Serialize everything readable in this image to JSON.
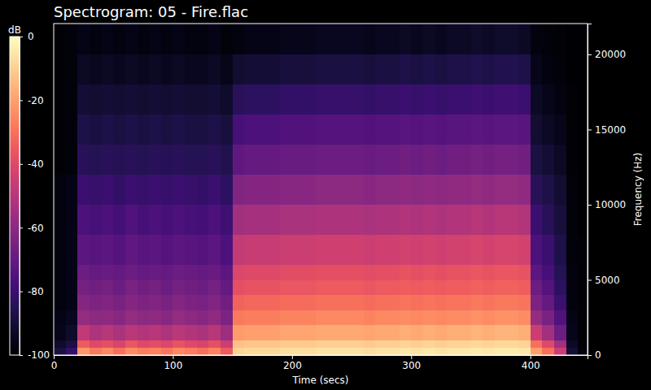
{
  "chart_data": {
    "type": "heatmap",
    "title": "Spectrogram: 05 - Fire.flac",
    "x_label": "Time (secs)",
    "y_label": "Frequency (Hz)",
    "xlim": [
      0,
      448
    ],
    "xticks": [
      0,
      100,
      200,
      300,
      400
    ],
    "ylim": [
      0,
      22050
    ],
    "yticks": [
      0,
      5000,
      10000,
      15000,
      20000
    ],
    "x_edges": [
      0,
      10,
      20,
      30,
      40,
      50,
      60,
      70,
      80,
      90,
      100,
      110,
      120,
      130,
      140,
      150,
      160,
      170,
      180,
      190,
      200,
      210,
      220,
      230,
      240,
      250,
      260,
      270,
      280,
      290,
      300,
      310,
      320,
      330,
      340,
      350,
      360,
      370,
      380,
      390,
      400,
      410,
      420,
      430,
      440,
      448
    ],
    "y_edges": [
      0,
      500,
      1000,
      2000,
      3000,
      4000,
      5000,
      6000,
      8000,
      10000,
      12000,
      14000,
      16000,
      18000,
      20000,
      22050
    ],
    "cells": [
      [
        -88,
        -82,
        -22,
        -28,
        -25,
        -30,
        -24,
        -27,
        -26,
        -29,
        -25,
        -27,
        -30,
        -26,
        -35,
        -9,
        -8,
        -8,
        -8,
        -7,
        -7,
        -7,
        -6,
        -6,
        -6,
        -6,
        -7,
        -6,
        -6,
        -5,
        -6,
        -5,
        -6,
        -5,
        -5,
        -4,
        -5,
        -4,
        -4,
        -5,
        -20,
        -30,
        -45,
        -90,
        -98
      ],
      [
        -92,
        -88,
        -35,
        -40,
        -38,
        -42,
        -36,
        -40,
        -39,
        -41,
        -37,
        -40,
        -42,
        -38,
        -45,
        -13,
        -12,
        -12,
        -12,
        -11,
        -11,
        -11,
        -10,
        -10,
        -10,
        -10,
        -11,
        -10,
        -10,
        -9,
        -10,
        -9,
        -10,
        -9,
        -9,
        -8,
        -9,
        -8,
        -8,
        -9,
        -30,
        -40,
        -55,
        -93,
        -99
      ],
      [
        -95,
        -92,
        -48,
        -52,
        -50,
        -53,
        -49,
        -51,
        -50,
        -52,
        -49,
        -51,
        -53,
        -50,
        -56,
        -21,
        -20,
        -20,
        -20,
        -19,
        -19,
        -19,
        -18,
        -18,
        -18,
        -18,
        -19,
        -18,
        -18,
        -17,
        -18,
        -17,
        -18,
        -17,
        -17,
        -16,
        -17,
        -16,
        -16,
        -17,
        -45,
        -55,
        -68,
        -95,
        -99
      ],
      [
        -96,
        -94,
        -58,
        -60,
        -59,
        -61,
        -58,
        -60,
        -59,
        -61,
        -58,
        -60,
        -61,
        -59,
        -64,
        -28,
        -27,
        -27,
        -27,
        -26,
        -26,
        -26,
        -25,
        -25,
        -25,
        -25,
        -26,
        -25,
        -25,
        -24,
        -25,
        -24,
        -25,
        -24,
        -24,
        -23,
        -24,
        -23,
        -23,
        -24,
        -58,
        -65,
        -75,
        -96,
        -99
      ],
      [
        -97,
        -96,
        -62,
        -64,
        -63,
        -65,
        -62,
        -64,
        -63,
        -65,
        -62,
        -64,
        -65,
        -63,
        -67,
        -33,
        -32,
        -32,
        -32,
        -31,
        -31,
        -31,
        -30,
        -30,
        -30,
        -30,
        -31,
        -30,
        -30,
        -29,
        -30,
        -29,
        -30,
        -29,
        -29,
        -28,
        -29,
        -28,
        -28,
        -29,
        -64,
        -70,
        -80,
        -97,
        -99
      ],
      [
        -97,
        -96,
        -66,
        -67,
        -66,
        -68,
        -65,
        -67,
        -66,
        -68,
        -66,
        -67,
        -68,
        -66,
        -70,
        -38,
        -37,
        -37,
        -37,
        -36,
        -36,
        -36,
        -35,
        -35,
        -35,
        -35,
        -36,
        -35,
        -35,
        -34,
        -35,
        -34,
        -35,
        -34,
        -34,
        -33,
        -34,
        -33,
        -33,
        -34,
        -68,
        -74,
        -83,
        -97,
        -99
      ],
      [
        -97,
        -96,
        -68,
        -70,
        -69,
        -70,
        -68,
        -70,
        -69,
        -70,
        -68,
        -69,
        -70,
        -69,
        -72,
        -41,
        -40,
        -40,
        -40,
        -39,
        -39,
        -39,
        -38,
        -38,
        -38,
        -38,
        -39,
        -38,
        -38,
        -37,
        -38,
        -37,
        -38,
        -37,
        -37,
        -36,
        -37,
        -36,
        -36,
        -37,
        -72,
        -77,
        -85,
        -97,
        -99
      ],
      [
        -97,
        -96,
        -72,
        -73,
        -72,
        -74,
        -71,
        -73,
        -72,
        -74,
        -72,
        -73,
        -74,
        -72,
        -76,
        -47,
        -46,
        -46,
        -46,
        -45,
        -45,
        -45,
        -44,
        -44,
        -44,
        -44,
        -45,
        -44,
        -44,
        -43,
        -44,
        -43,
        -44,
        -43,
        -43,
        -42,
        -43,
        -42,
        -42,
        -43,
        -76,
        -80,
        -87,
        -98,
        -99
      ],
      [
        -97,
        -96,
        -76,
        -77,
        -76,
        -78,
        -75,
        -77,
        -76,
        -77,
        -76,
        -77,
        -78,
        -76,
        -79,
        -55,
        -54,
        -54,
        -54,
        -53,
        -53,
        -53,
        -52,
        -52,
        -52,
        -52,
        -53,
        -52,
        -52,
        -51,
        -52,
        -51,
        -52,
        -51,
        -51,
        -50,
        -51,
        -50,
        -50,
        -51,
        -80,
        -84,
        -89,
        -98,
        -100
      ],
      [
        -97,
        -96,
        -80,
        -81,
        -80,
        -82,
        -80,
        -81,
        -80,
        -81,
        -80,
        -81,
        -82,
        -80,
        -83,
        -63,
        -62,
        -62,
        -62,
        -61,
        -61,
        -61,
        -60,
        -60,
        -60,
        -60,
        -61,
        -60,
        -60,
        -59,
        -60,
        -59,
        -60,
        -59,
        -59,
        -58,
        -59,
        -58,
        -58,
        -59,
        -84,
        -87,
        -91,
        -98,
        -100
      ],
      [
        -99,
        -98,
        -84,
        -85,
        -84,
        -85,
        -84,
        -85,
        -84,
        -85,
        -84,
        -85,
        -85,
        -84,
        -86,
        -71,
        -70,
        -70,
        -70,
        -69,
        -69,
        -69,
        -68,
        -68,
        -68,
        -68,
        -69,
        -68,
        -68,
        -67,
        -68,
        -67,
        -68,
        -67,
        -67,
        -66,
        -67,
        -66,
        -66,
        -67,
        -88,
        -90,
        -93,
        -99,
        -100
      ],
      [
        -99,
        -98,
        -87,
        -88,
        -87,
        -88,
        -87,
        -88,
        -87,
        -88,
        -87,
        -88,
        -88,
        -87,
        -89,
        -77,
        -76,
        -76,
        -76,
        -75,
        -75,
        -75,
        -74,
        -74,
        -74,
        -74,
        -75,
        -74,
        -74,
        -73,
        -74,
        -73,
        -74,
        -73,
        -73,
        -72,
        -73,
        -72,
        -72,
        -73,
        -91,
        -93,
        -95,
        -99,
        -100
      ],
      [
        -99,
        -98,
        -90,
        -91,
        -90,
        -91,
        -90,
        -91,
        -90,
        -91,
        -90,
        -91,
        -91,
        -90,
        -92,
        -84,
        -83,
        -83,
        -83,
        -82,
        -82,
        -82,
        -81,
        -81,
        -81,
        -81,
        -82,
        -81,
        -81,
        -80,
        -81,
        -80,
        -81,
        -80,
        -80,
        -79,
        -80,
        -79,
        -79,
        -80,
        -93,
        -95,
        -97,
        -99,
        -100
      ],
      [
        -99,
        -98,
        -93,
        -94,
        -93,
        -94,
        -93,
        -94,
        -93,
        -94,
        -93,
        -94,
        -94,
        -93,
        -95,
        -91,
        -90,
        -90,
        -90,
        -89,
        -89,
        -89,
        -88,
        -88,
        -88,
        -88,
        -89,
        -88,
        -88,
        -87,
        -88,
        -87,
        -88,
        -87,
        -87,
        -86,
        -87,
        -86,
        -86,
        -87,
        -95,
        -97,
        -98,
        -100,
        -100
      ],
      [
        -99,
        -98,
        -96,
        -97,
        -96,
        -97,
        -96,
        -97,
        -96,
        -97,
        -96,
        -97,
        -97,
        -96,
        -98,
        -97,
        -96,
        -96,
        -96,
        -95,
        -95,
        -95,
        -94,
        -94,
        -94,
        -94,
        -95,
        -94,
        -94,
        -93,
        -94,
        -93,
        -94,
        -93,
        -93,
        -92,
        -93,
        -92,
        -92,
        -93,
        -97,
        -98,
        -99,
        -100,
        -100
      ]
    ],
    "zlim": [
      -100,
      0
    ],
    "zticks": [
      0,
      -20,
      -40,
      -60,
      -80,
      -100
    ],
    "zlabel": "dB"
  }
}
